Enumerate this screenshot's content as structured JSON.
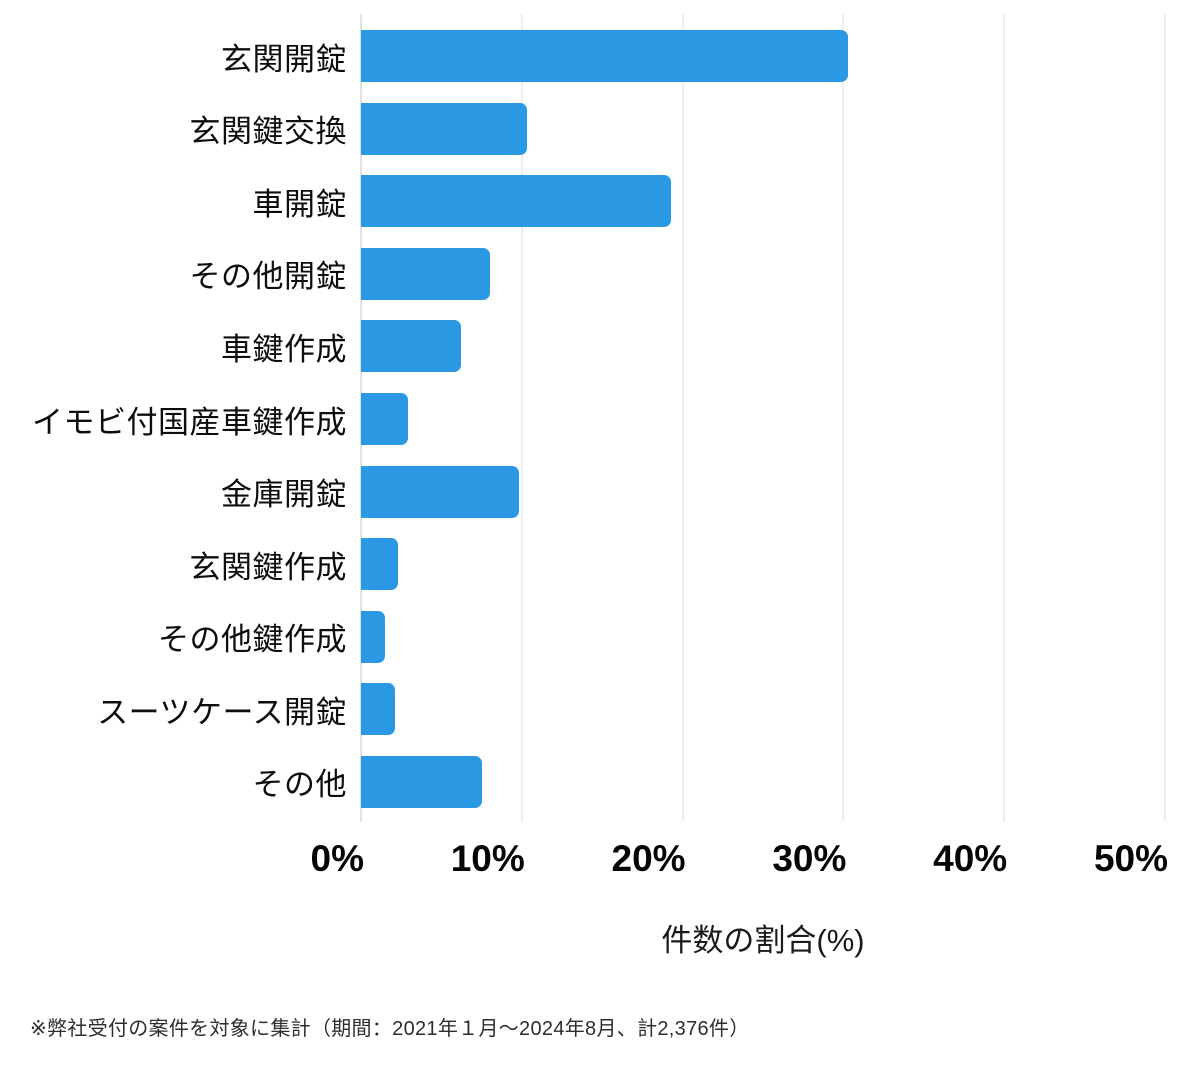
{
  "chart_data": {
    "type": "bar",
    "orientation": "horizontal",
    "title": "",
    "categories": [
      "玄関開錠",
      "玄関鍵交換",
      "車開錠",
      "その他開錠",
      "車鍵作成",
      "イモビ付国産車鍵作成",
      "金庫開錠",
      "玄関鍵作成",
      "その他鍵作成",
      "スーツケース開錠",
      "その他"
    ],
    "values": [
      30.3,
      10.3,
      19.3,
      8.0,
      6.2,
      2.9,
      9.8,
      2.3,
      1.5,
      2.1,
      7.5
    ],
    "value_unit": "%",
    "xlabel": "件数の割合(%)",
    "ylabel": "",
    "xlim": [
      0,
      50
    ],
    "xticks": [
      0,
      10,
      20,
      30,
      40,
      50
    ],
    "xtick_suffix": "%",
    "grid": true,
    "legend": "none",
    "bar_color": "#2b98e4"
  },
  "footer": {
    "note": "※弊社受付の案件を対象に集計（期間：2021年１月～2024年8月、計2,376件）"
  },
  "colors": {
    "bar": "#2b98e4",
    "gridline": "#dedede",
    "axis_line": "#c4c4c4",
    "label_text": "#0d0d0d",
    "tick_text": "#050505",
    "background": "#ffffff"
  }
}
